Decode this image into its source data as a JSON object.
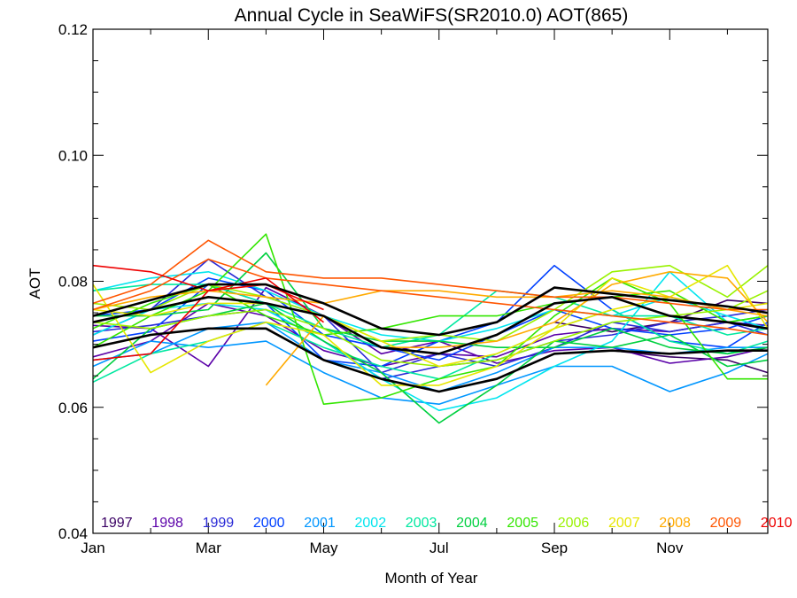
{
  "chart_data": {
    "type": "line",
    "title": "Annual Cycle in SeaWiFS(SR2010.0) AOT(865)",
    "xlabel": "Month of Year",
    "ylabel": "AOT",
    "xlim": [
      1,
      12.7
    ],
    "ylim": [
      0.04,
      0.12
    ],
    "grid": false,
    "legend_position": "bottom",
    "x_ticks": [
      {
        "value": 1,
        "label": "Jan"
      },
      {
        "value": 3,
        "label": "Mar"
      },
      {
        "value": 5,
        "label": "May"
      },
      {
        "value": 7,
        "label": "Jul"
      },
      {
        "value": 9,
        "label": "Sep"
      },
      {
        "value": 11,
        "label": "Nov"
      }
    ],
    "x_minor_ticks": [
      2,
      4,
      6,
      8,
      10,
      12
    ],
    "y_ticks": [
      {
        "value": 0.04,
        "label": "0.04"
      },
      {
        "value": 0.06,
        "label": "0.06"
      },
      {
        "value": 0.08,
        "label": "0.08"
      },
      {
        "value": 0.1,
        "label": "0.10"
      },
      {
        "value": 0.12,
        "label": "0.12"
      }
    ],
    "y_minor_ticks": [
      0.045,
      0.05,
      0.055,
      0.065,
      0.07,
      0.075,
      0.085,
      0.09,
      0.095,
      0.105,
      0.11,
      0.115
    ],
    "x": [
      1,
      2,
      3,
      4,
      5,
      6,
      7,
      8,
      9,
      10,
      11,
      12,
      12.7
    ],
    "series": [
      {
        "name": "1997",
        "color": "#3a0064",
        "lines": [
          [
            null,
            null,
            null,
            null,
            null,
            null,
            null,
            null,
            0.0735,
            0.072,
            0.0735,
            0.077,
            0.0765
          ],
          [
            null,
            null,
            null,
            null,
            null,
            null,
            null,
            null,
            0.0685,
            0.069,
            0.068,
            0.0675,
            0.0655
          ]
        ]
      },
      {
        "name": "1998",
        "color": "#5a00a8",
        "lines": [
          [
            0.073,
            0.0725,
            0.0665,
            0.079,
            0.0745,
            0.0685,
            0.0705,
            0.067,
            0.069,
            0.0695,
            0.067,
            0.068,
            0.0695
          ],
          [
            0.068,
            0.0705,
            0.0765,
            0.0745,
            0.069,
            0.0665,
            0.0685,
            0.068,
            0.0715,
            0.0725,
            0.072,
            0.0735,
            0.073
          ]
        ]
      },
      {
        "name": "1999",
        "color": "#2a2ad6",
        "lines": [
          [
            0.0715,
            0.0755,
            0.0835,
            0.0775,
            0.0745,
            0.0655,
            0.0685,
            0.0665,
            0.0695,
            0.0735,
            0.072,
            0.0735,
            0.0715
          ],
          [
            0.072,
            0.073,
            0.0745,
            0.0755,
            0.0705,
            0.0645,
            0.0665,
            0.0675,
            0.0705,
            0.0715,
            0.0735,
            0.0745,
            0.0755
          ]
        ]
      },
      {
        "name": "2000",
        "color": "#0040ff",
        "lines": [
          [
            0.0745,
            0.0755,
            0.0805,
            0.0785,
            0.0715,
            0.0695,
            0.0675,
            0.0715,
            0.0755,
            0.0725,
            0.0715,
            0.0725,
            0.0745
          ],
          [
            0.0705,
            0.072,
            0.0795,
            0.0765,
            0.0675,
            0.0665,
            0.0705,
            0.0735,
            0.0825,
            0.0755,
            0.0705,
            0.0695,
            0.0735
          ]
        ]
      },
      {
        "name": "2001",
        "color": "#0096ff",
        "lines": [
          [
            0.0665,
            0.0705,
            0.0695,
            0.0705,
            0.0655,
            0.0615,
            0.0605,
            0.0635,
            0.0665,
            0.0665,
            0.0625,
            0.0655,
            0.0685
          ],
          [
            0.0675,
            0.0685,
            0.0725,
            0.0735,
            0.0675,
            0.0655,
            0.0625,
            0.0655,
            0.0695,
            0.0695,
            0.0685,
            0.0695,
            0.0695
          ]
        ]
      },
      {
        "name": "2002",
        "color": "#00e5ee",
        "lines": [
          [
            0.0715,
            0.0755,
            0.0765,
            0.0755,
            0.0705,
            0.0645,
            0.0595,
            0.0615,
            0.0665,
            0.0705,
            0.0815,
            0.0735,
            0.0745
          ],
          [
            0.0785,
            0.0805,
            0.0815,
            0.0785,
            0.0745,
            0.0715,
            0.0705,
            0.0725,
            0.0755,
            0.0745,
            0.0775,
            0.0745,
            0.0725
          ]
        ]
      },
      {
        "name": "2003",
        "color": "#00e8a0",
        "lines": [
          [
            0.0785,
            0.0795,
            0.0795,
            0.0765,
            0.0725,
            0.0695,
            0.0715,
            0.0785,
            0.0775,
            0.0745,
            0.0745,
            0.0715,
            0.0725
          ],
          [
            0.064,
            0.0685,
            0.0705,
            0.0735,
            0.0695,
            0.0665,
            0.0645,
            0.0685,
            0.0725,
            0.0755,
            0.0705,
            0.0685,
            0.0705
          ]
        ]
      },
      {
        "name": "2004",
        "color": "#00d040",
        "lines": [
          [
            0.0645,
            0.0725,
            0.0745,
            0.0765,
            0.0705,
            0.0655,
            0.0575,
            0.0635,
            0.0705,
            0.0695,
            0.0715,
            0.0665,
            0.0675
          ],
          [
            0.0745,
            0.0745,
            0.0755,
            0.0845,
            0.0725,
            0.0705,
            0.0705,
            0.0695,
            0.0695,
            0.0725,
            0.0695,
            0.0685,
            0.0695
          ]
        ]
      },
      {
        "name": "2005",
        "color": "#33e600",
        "lines": [
          [
            0.0695,
            0.0745,
            0.0785,
            0.0875,
            0.0605,
            0.0615,
            0.0645,
            0.0665,
            0.0745,
            0.0805,
            0.0765,
            0.0645,
            0.0645
          ],
          [
            0.0725,
            0.0765,
            0.0795,
            0.0745,
            0.0715,
            0.0725,
            0.0745,
            0.0745,
            0.0765,
            0.0775,
            0.0785,
            0.0735,
            0.0745
          ]
        ]
      },
      {
        "name": "2006",
        "color": "#99f200",
        "lines": [
          [
            0.0765,
            0.0755,
            0.0795,
            0.0775,
            0.0745,
            0.0705,
            0.0715,
            0.0705,
            0.0755,
            0.0815,
            0.0825,
            0.0775,
            0.0825
          ],
          [
            0.0735,
            0.0725,
            0.0745,
            0.0755,
            0.0725,
            0.0675,
            0.0665,
            0.0675,
            0.0705,
            0.0735,
            0.0745,
            0.0755,
            0.0785
          ]
        ]
      },
      {
        "name": "2007",
        "color": "#e6e600",
        "lines": [
          [
            0.0795,
            0.0655,
            0.0705,
            0.0735,
            0.0715,
            0.0635,
            0.0635,
            0.0665,
            0.0725,
            0.0805,
            0.0775,
            0.0825,
            0.0725
          ],
          [
            0.0755,
            0.0745,
            0.0765,
            0.0765,
            0.0745,
            0.0705,
            0.0665,
            0.0685,
            0.0725,
            0.0755,
            0.0775,
            0.0755,
            0.0765
          ]
        ]
      },
      {
        "name": "2008",
        "color": "#ffaa00",
        "lines": [
          [
            null,
            null,
            null,
            0.0635,
            0.0745,
            0.0695,
            0.0695,
            0.0705,
            0.0735,
            0.0795,
            0.0815,
            0.0805,
            0.0735
          ],
          [
            0.0755,
            0.0775,
            0.0785,
            0.0775,
            0.0765,
            0.0785,
            0.0785,
            0.0775,
            0.0775,
            0.0785,
            0.0775,
            0.0755,
            0.0745
          ]
        ]
      },
      {
        "name": "2009",
        "color": "#ff5500",
        "lines": [
          [
            0.0765,
            0.0795,
            0.0865,
            0.0815,
            0.0805,
            0.0805,
            0.0795,
            0.0785,
            0.0775,
            0.0775,
            0.0765,
            0.0755,
            0.0755
          ],
          [
            0.0755,
            0.0785,
            0.0835,
            0.0805,
            0.0795,
            0.0785,
            0.0775,
            0.0765,
            0.0755,
            0.0745,
            0.0735,
            0.0725,
            0.0715
          ]
        ]
      },
      {
        "name": "2010",
        "color": "#ee0000",
        "lines": [
          [
            0.0825,
            0.0815,
            0.0785,
            0.0795,
            0.0755,
            null,
            null,
            null,
            null,
            null,
            null,
            null,
            null
          ],
          [
            0.0675,
            0.0685,
            0.0785,
            0.0805,
            0.0735,
            null,
            null,
            null,
            null,
            null,
            null,
            null,
            null
          ]
        ]
      }
    ],
    "reference_lines": {
      "color": "#000000",
      "lines": [
        [
          0.0735,
          0.0755,
          0.0775,
          0.0765,
          0.0745,
          0.0695,
          0.0685,
          0.0715,
          0.0765,
          0.0775,
          0.0745,
          0.0735,
          0.0725
        ],
        [
          0.0695,
          0.0715,
          0.0725,
          0.0725,
          0.0675,
          0.0645,
          0.0625,
          0.0645,
          0.0685,
          0.069,
          0.0685,
          0.069,
          0.069
        ],
        [
          0.0745,
          0.077,
          0.0795,
          0.0795,
          0.0765,
          0.0725,
          0.0715,
          0.0735,
          0.079,
          0.078,
          0.077,
          0.076,
          0.075
        ]
      ]
    }
  }
}
